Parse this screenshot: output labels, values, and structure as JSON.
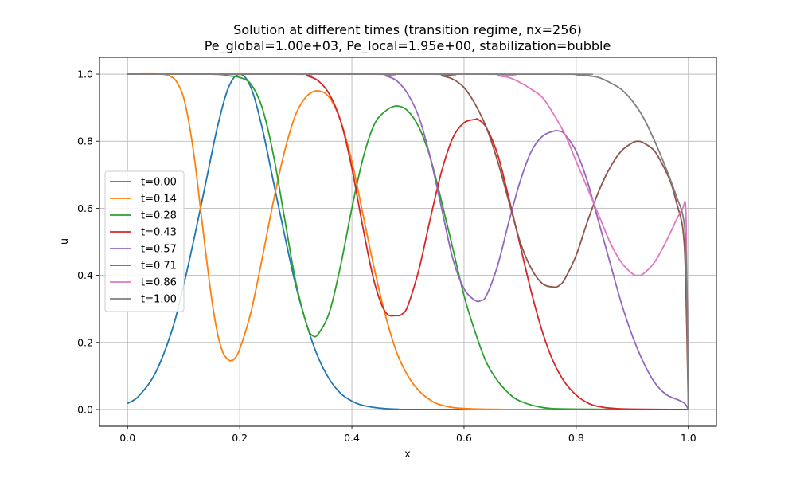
{
  "chart_data": {
    "type": "line",
    "title_line1": "Solution at different times (transition regime, nx=256)",
    "title_line2": "Pe_global=1.00e+03, Pe_local=1.95e+00, stabilization=bubble",
    "xlabel": "x",
    "ylabel": "u",
    "xlim": [
      -0.05,
      1.05
    ],
    "ylim": [
      -0.05,
      1.05
    ],
    "x_ticks": [
      0.0,
      0.2,
      0.4,
      0.6,
      0.8,
      1.0
    ],
    "x_tick_labels": [
      "0.0",
      "0.2",
      "0.4",
      "0.6",
      "0.8",
      "1.0"
    ],
    "y_ticks": [
      0.0,
      0.2,
      0.4,
      0.6,
      0.8,
      1.0
    ],
    "y_tick_labels": [
      "0.0",
      "0.2",
      "0.4",
      "0.6",
      "0.8",
      "1.0"
    ],
    "grid": true,
    "legend_position": "center-left",
    "series": [
      {
        "name": "t=0.00",
        "color": "#1f77b4",
        "x": [
          0.0,
          0.02,
          0.05,
          0.08,
          0.1,
          0.12,
          0.14,
          0.16,
          0.18,
          0.2,
          0.22,
          0.24,
          0.26,
          0.28,
          0.3,
          0.32,
          0.34,
          0.36,
          0.38,
          0.4,
          0.42,
          0.45,
          0.48,
          0.5,
          0.6,
          0.8,
          1.0
        ],
        "y": [
          0.018,
          0.04,
          0.11,
          0.24,
          0.37,
          0.52,
          0.68,
          0.84,
          0.96,
          1.0,
          0.96,
          0.84,
          0.68,
          0.52,
          0.37,
          0.25,
          0.155,
          0.09,
          0.048,
          0.025,
          0.012,
          0.004,
          0.001,
          0.0,
          0.0,
          0.0,
          0.0
        ]
      },
      {
        "name": "t=0.14",
        "color": "#ff7f0e",
        "x": [
          0.0,
          0.06,
          0.08,
          0.09,
          0.1,
          0.11,
          0.12,
          0.13,
          0.14,
          0.15,
          0.16,
          0.17,
          0.18,
          0.185,
          0.19,
          0.2,
          0.22,
          0.24,
          0.26,
          0.28,
          0.3,
          0.32,
          0.34,
          0.36,
          0.38,
          0.4,
          0.42,
          0.44,
          0.46,
          0.48,
          0.5,
          0.52,
          0.54,
          0.56,
          0.6,
          0.7,
          1.0
        ],
        "y": [
          1.0,
          1.0,
          0.99,
          0.97,
          0.93,
          0.85,
          0.74,
          0.6,
          0.46,
          0.33,
          0.23,
          0.17,
          0.148,
          0.146,
          0.15,
          0.18,
          0.29,
          0.45,
          0.62,
          0.77,
          0.88,
          0.935,
          0.95,
          0.93,
          0.86,
          0.74,
          0.58,
          0.42,
          0.28,
          0.17,
          0.1,
          0.055,
          0.028,
          0.013,
          0.003,
          0.0,
          0.0
        ]
      },
      {
        "name": "t=0.28",
        "color": "#2ca02c",
        "x": [
          0.0,
          0.15,
          0.18,
          0.2,
          0.22,
          0.24,
          0.26,
          0.28,
          0.3,
          0.32,
          0.33,
          0.34,
          0.36,
          0.38,
          0.4,
          0.42,
          0.44,
          0.46,
          0.48,
          0.5,
          0.52,
          0.54,
          0.56,
          0.58,
          0.6,
          0.62,
          0.64,
          0.66,
          0.68,
          0.7,
          0.74,
          0.8,
          1.0
        ],
        "y": [
          1.0,
          1.0,
          0.995,
          0.99,
          0.97,
          0.9,
          0.76,
          0.57,
          0.38,
          0.25,
          0.22,
          0.225,
          0.29,
          0.43,
          0.6,
          0.75,
          0.85,
          0.89,
          0.905,
          0.89,
          0.84,
          0.75,
          0.62,
          0.48,
          0.34,
          0.23,
          0.14,
          0.085,
          0.048,
          0.025,
          0.006,
          0.001,
          0.0
        ]
      },
      {
        "name": "t=0.43",
        "color": "#d62728",
        "x": [
          0.0,
          0.3,
          0.32,
          0.34,
          0.36,
          0.38,
          0.4,
          0.42,
          0.44,
          0.46,
          0.48,
          0.49,
          0.5,
          0.52,
          0.54,
          0.56,
          0.58,
          0.6,
          0.62,
          0.625,
          0.64,
          0.66,
          0.68,
          0.7,
          0.72,
          0.74,
          0.76,
          0.78,
          0.8,
          0.82,
          0.84,
          0.88,
          1.0
        ],
        "y": [
          1.0,
          1.0,
          0.995,
          0.98,
          0.94,
          0.86,
          0.72,
          0.54,
          0.38,
          0.29,
          0.28,
          0.285,
          0.31,
          0.42,
          0.57,
          0.71,
          0.81,
          0.855,
          0.865,
          0.865,
          0.84,
          0.76,
          0.63,
          0.49,
          0.35,
          0.23,
          0.14,
          0.08,
          0.043,
          0.02,
          0.009,
          0.002,
          0.0
        ]
      },
      {
        "name": "t=0.57",
        "color": "#9467bd",
        "x": [
          0.0,
          0.44,
          0.46,
          0.48,
          0.5,
          0.52,
          0.54,
          0.56,
          0.58,
          0.6,
          0.62,
          0.63,
          0.64,
          0.66,
          0.68,
          0.7,
          0.72,
          0.74,
          0.76,
          0.77,
          0.78,
          0.8,
          0.82,
          0.84,
          0.86,
          0.88,
          0.9,
          0.92,
          0.94,
          0.96,
          0.98,
          0.99,
          0.995,
          1.0
        ],
        "y": [
          1.0,
          1.0,
          0.995,
          0.98,
          0.94,
          0.87,
          0.75,
          0.6,
          0.45,
          0.36,
          0.325,
          0.325,
          0.34,
          0.43,
          0.56,
          0.68,
          0.77,
          0.815,
          0.83,
          0.83,
          0.82,
          0.77,
          0.68,
          0.56,
          0.44,
          0.32,
          0.22,
          0.14,
          0.08,
          0.045,
          0.03,
          0.022,
          0.015,
          0.0
        ]
      },
      {
        "name": "t=0.71",
        "color": "#8c564b",
        "x": [
          0.0,
          0.54,
          0.56,
          0.58,
          0.6,
          0.62,
          0.64,
          0.66,
          0.68,
          0.7,
          0.72,
          0.74,
          0.76,
          0.77,
          0.78,
          0.8,
          0.82,
          0.84,
          0.86,
          0.88,
          0.9,
          0.91,
          0.92,
          0.94,
          0.96,
          0.97,
          0.98,
          0.99,
          0.995,
          1.0
        ],
        "y": [
          1.0,
          1.0,
          0.995,
          0.985,
          0.96,
          0.91,
          0.84,
          0.74,
          0.62,
          0.5,
          0.42,
          0.375,
          0.365,
          0.37,
          0.39,
          0.46,
          0.56,
          0.65,
          0.72,
          0.77,
          0.795,
          0.8,
          0.795,
          0.77,
          0.71,
          0.67,
          0.61,
          0.54,
          0.4,
          0.0
        ]
      },
      {
        "name": "t=0.86",
        "color": "#e377c2",
        "x": [
          0.0,
          0.64,
          0.66,
          0.68,
          0.7,
          0.72,
          0.74,
          0.76,
          0.78,
          0.8,
          0.82,
          0.84,
          0.86,
          0.88,
          0.9,
          0.91,
          0.92,
          0.94,
          0.96,
          0.98,
          0.99,
          0.995,
          0.997,
          1.0
        ],
        "y": [
          1.0,
          1.0,
          0.995,
          0.99,
          0.975,
          0.955,
          0.93,
          0.88,
          0.82,
          0.74,
          0.66,
          0.58,
          0.5,
          0.44,
          0.405,
          0.4,
          0.405,
          0.44,
          0.5,
          0.57,
          0.6,
          0.61,
          0.45,
          0.0
        ]
      },
      {
        "name": "t=1.00",
        "color": "#7f7f7f",
        "x": [
          0.0,
          0.76,
          0.8,
          0.82,
          0.84,
          0.86,
          0.88,
          0.9,
          0.92,
          0.94,
          0.96,
          0.98,
          0.99,
          0.995,
          0.998,
          1.0
        ],
        "y": [
          1.0,
          1.0,
          0.998,
          0.995,
          0.99,
          0.975,
          0.955,
          0.92,
          0.87,
          0.8,
          0.72,
          0.63,
          0.58,
          0.5,
          0.3,
          0.0
        ]
      }
    ]
  }
}
